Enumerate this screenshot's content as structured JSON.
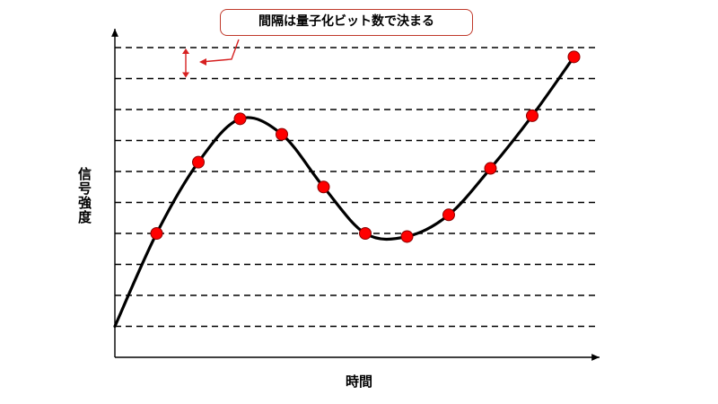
{
  "callout": {
    "text": "間隔は量子化ビット数で決まる"
  },
  "axes": {
    "xlabel": "時間",
    "ylabel": "信号強度"
  },
  "colors": {
    "curve": "#000000",
    "sample_fill": "#ff0000",
    "sample_stroke": "#8b0000",
    "annotation": "#d62020",
    "grid": "#000000"
  },
  "quantization": {
    "level_count": 10
  },
  "samples": [
    {
      "t": 1,
      "level": 4
    },
    {
      "t": 2,
      "level": 6.3
    },
    {
      "t": 3,
      "level": 7.7
    },
    {
      "t": 4,
      "level": 7.2
    },
    {
      "t": 5,
      "level": 5.5
    },
    {
      "t": 6,
      "level": 4
    },
    {
      "t": 7,
      "level": 3.9
    },
    {
      "t": 8,
      "level": 4.6
    },
    {
      "t": 9,
      "level": 6.1
    },
    {
      "t": 10,
      "level": 7.8
    },
    {
      "t": 11,
      "level": 9.7
    }
  ]
}
